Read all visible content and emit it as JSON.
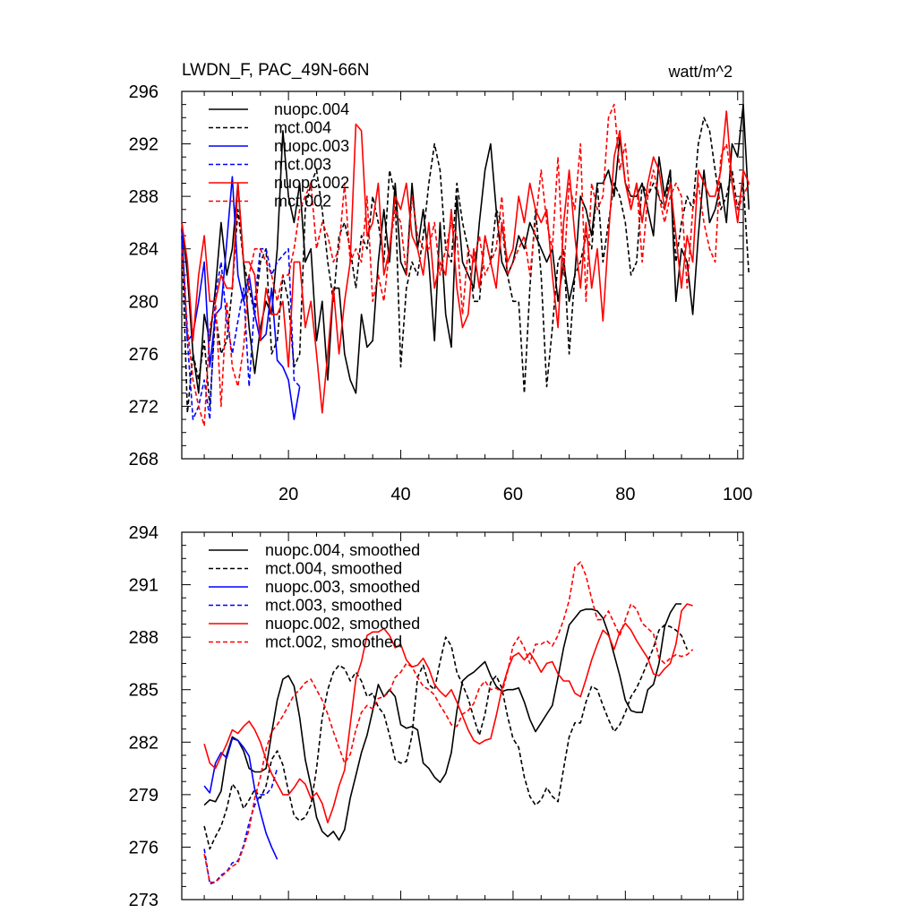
{
  "chart_data": [
    {
      "type": "line",
      "title": "LWDN_F, PAC_49N-66N",
      "units": "watt/m^2",
      "xlim": [
        1,
        101
      ],
      "ylim": [
        268,
        296
      ],
      "xticks": [
        20,
        40,
        60,
        80,
        100
      ],
      "xtick_labels": [
        "20",
        "40",
        "60",
        "80",
        "100"
      ],
      "yticks": [
        268,
        272,
        276,
        280,
        284,
        288,
        292,
        296
      ],
      "ytick_labels": [
        "268",
        "272",
        "276",
        "280",
        "284",
        "288",
        "292",
        "296"
      ],
      "legend_position": "top-left",
      "series": [
        {
          "name": "nuopc.004",
          "color": "#000000",
          "dash": "solid",
          "x_start": 1,
          "values": [
            286.0,
            282.0,
            276.0,
            273.0,
            279.0,
            277.0,
            281.0,
            286.0,
            282.0,
            284.0,
            289.0,
            283.0,
            278.0,
            274.5,
            278.0,
            280.0,
            279.0,
            284.0,
            293.0,
            288.0,
            286.0,
            289.0,
            283.0,
            284.0,
            277.0,
            280.0,
            274.0,
            281.0,
            281.0,
            276.0,
            274.0,
            273.0,
            279.0,
            276.5,
            277.0,
            283.0,
            287.0,
            283.0,
            289.0,
            283.0,
            282.0,
            289.0,
            284.0,
            287.0,
            283.0,
            277.0,
            286.0,
            279.0,
            276.5,
            288.0,
            283.0,
            282.0,
            281.0,
            286.0,
            290.0,
            292.0,
            287.0,
            283.0,
            282.0,
            283.0,
            285.0,
            284.0,
            286.0,
            285.0,
            284.0,
            283.0,
            284.0,
            280.0,
            283.0,
            280.0,
            282.0,
            288.0,
            287.0,
            285.0,
            289.0,
            289.0,
            290.0,
            288.0,
            292.5,
            289.0,
            288.0,
            288.0,
            289.0,
            287.0,
            285.0,
            291.0,
            288.0,
            290.0,
            280.0,
            284.0,
            283.0,
            279.0,
            285.0,
            290.0,
            286.0,
            287.0,
            289.0,
            286.0,
            292.0,
            291.0,
            295.0,
            287.0
          ]
        },
        {
          "name": "mct.004",
          "color": "#000000",
          "dash": "dashed",
          "x_start": 1,
          "values": [
            285.0,
            271.5,
            276.0,
            274.0,
            277.0,
            272.0,
            279.0,
            276.0,
            277.0,
            281.0,
            287.0,
            283.0,
            281.0,
            279.0,
            283.0,
            284.0,
            276.0,
            277.0,
            282.0,
            280.0,
            275.0,
            276.0,
            287.0,
            289.0,
            290.0,
            287.0,
            283.0,
            280.0,
            285.0,
            286.0,
            284.0,
            281.0,
            285.0,
            284.0,
            288.0,
            286.0,
            283.0,
            290.0,
            288.0,
            275.0,
            281.0,
            283.0,
            282.0,
            285.0,
            289.0,
            292.0,
            290.0,
            284.0,
            283.0,
            289.0,
            286.0,
            284.0,
            280.0,
            280.0,
            285.0,
            283.0,
            287.0,
            286.0,
            282.0,
            280.0,
            280.0,
            273.0,
            281.0,
            287.0,
            282.0,
            273.5,
            278.0,
            283.0,
            284.0,
            276.0,
            282.0,
            283.0,
            285.0,
            284.0,
            289.0,
            283.0,
            286.0,
            289.0,
            288.0,
            286.0,
            282.0,
            283.0,
            289.0,
            288.0,
            289.0,
            288.0,
            287.0,
            290.0,
            283.0,
            286.0,
            288.0,
            287.0,
            292.0,
            294.0,
            293.0,
            290.0,
            287.0,
            288.0,
            290.0,
            287.0,
            289.0,
            282.0
          ]
        },
        {
          "name": "nuopc.003",
          "color": "#0000ff",
          "dash": "solid",
          "x_start": 1,
          "values": [
            285.5,
            277.0,
            277.5,
            280.0,
            283.0,
            275.0,
            279.0,
            279.5,
            284.5,
            289.5,
            282.0,
            280.0,
            282.0,
            279.0,
            277.0,
            277.5,
            281.0,
            275.5,
            275.0,
            274.0,
            271.0,
            273.5
          ]
        },
        {
          "name": "mct.003",
          "color": "#0000ff",
          "dash": "dashed",
          "x_start": 1,
          "values": [
            285.5,
            277.0,
            271.0,
            272.0,
            274.0,
            271.0,
            280.5,
            283.0,
            278.5,
            276.0,
            278.5,
            281.0,
            273.5,
            280.0,
            284.0,
            284.0,
            282.0,
            283.0,
            283.5,
            284.0,
            274.0,
            273.5
          ]
        },
        {
          "name": "nuopc.002",
          "color": "#ff0000",
          "dash": "solid",
          "x_start": 1,
          "values": [
            286.0,
            283.0,
            277.0,
            282.0,
            285.0,
            280.0,
            280.0,
            282.0,
            281.0,
            281.0,
            289.0,
            283.0,
            283.0,
            282.0,
            277.0,
            281.0,
            279.0,
            279.0,
            280.0,
            275.0,
            283.0,
            283.0,
            278.0,
            280.0,
            276.0,
            271.5,
            276.0,
            281.0,
            276.0,
            280.0,
            283.0,
            293.5,
            293.0,
            285.0,
            286.0,
            289.0,
            282.0,
            284.0,
            288.0,
            287.0,
            289.0,
            285.0,
            284.0,
            282.0,
            286.0,
            281.0,
            283.0,
            282.0,
            287.0,
            281.0,
            278.0,
            279.0,
            284.0,
            281.0,
            285.0,
            283.0,
            281.0,
            286.0,
            283.0,
            284.0,
            288.0,
            286.0,
            289.0,
            287.0,
            286.0,
            287.0,
            282.0,
            278.0,
            286.0,
            290.0,
            285.0,
            281.0,
            286.0,
            281.0,
            284.0,
            278.5,
            285.0,
            291.0,
            293.0,
            289.0,
            287.0,
            289.0,
            286.0,
            289.0,
            291.0,
            290.0,
            287.0,
            289.0,
            285.0,
            281.0,
            285.0,
            283.0,
            290.0,
            289.0,
            288.0,
            288.0,
            290.0,
            294.5,
            289.0,
            286.0,
            290.0,
            289.0
          ]
        },
        {
          "name": "mct.002",
          "color": "#ff0000",
          "dash": "dashed",
          "x_start": 1,
          "values": [
            284.0,
            278.0,
            274.0,
            272.0,
            270.5,
            278.0,
            280.0,
            272.0,
            280.0,
            275.0,
            273.5,
            276.5,
            282.0,
            284.0,
            284.0,
            283.0,
            282.0,
            280.0,
            282.0,
            282.0,
            284.0,
            287.0,
            288.0,
            289.0,
            284.0,
            286.0,
            285.0,
            283.0,
            284.0,
            289.0,
            283.0,
            284.0,
            283.0,
            288.0,
            280.0,
            282.0,
            280.0,
            284.0,
            287.0,
            286.0,
            282.0,
            288.0,
            285.0,
            284.0,
            284.0,
            286.0,
            282.0,
            284.0,
            286.0,
            285.0,
            279.0,
            284.0,
            283.0,
            285.0,
            282.0,
            283.0,
            284.0,
            288.0,
            282.0,
            283.0,
            284.0,
            285.0,
            282.0,
            286.0,
            290.0,
            286.0,
            284.0,
            291.0,
            282.0,
            289.0,
            287.0,
            292.0,
            280.0,
            289.0,
            287.0,
            288.0,
            294.0,
            295.0,
            290.0,
            292.0,
            287.0,
            289.0,
            283.0,
            288.0,
            290.0,
            288.0,
            286.0,
            288.0,
            289.0,
            288.0,
            281.0,
            287.0,
            289.0,
            286.0,
            284.0,
            283.0,
            291.0,
            292.0,
            289.0,
            287.0,
            288.0,
            289.0
          ]
        }
      ]
    },
    {
      "type": "line",
      "ylim": [
        273,
        294
      ],
      "xlim": [
        1,
        101
      ],
      "xticks": [
        20,
        40,
        60,
        80,
        100
      ],
      "yticks": [
        273,
        276,
        279,
        282,
        285,
        288,
        291,
        294
      ],
      "ytick_labels": [
        "273",
        "276",
        "279",
        "282",
        "285",
        "288",
        "291",
        "294"
      ],
      "legend_position": "top-left",
      "series": [
        {
          "name": "nuopc.004, smoothed",
          "color": "#000000",
          "dash": "solid",
          "x_start": 5,
          "values": [
            278.4,
            278.7,
            278.6,
            279.2,
            281.3,
            282.3,
            282.1,
            281.5,
            280.5,
            280.3,
            280.3,
            280.5,
            282.5,
            284.4,
            285.6,
            285.8,
            285.2,
            283.4,
            281.0,
            279.5,
            277.7,
            276.9,
            276.6,
            276.9,
            276.4,
            277.0,
            278.8,
            280.1,
            281.4,
            282.4,
            283.8,
            285.3,
            284.6,
            285.0,
            284.6,
            283.0,
            282.8,
            282.9,
            282.7,
            280.8,
            280.5,
            280.0,
            279.7,
            280.2,
            281.4,
            283.8,
            285.5,
            285.8,
            286.0,
            286.3,
            286.6,
            285.8,
            285.2,
            284.9,
            285.0,
            285.0,
            285.1,
            284.3,
            283.3,
            282.6,
            283.1,
            283.6,
            284.1,
            285.7,
            287.4,
            288.7,
            289.1,
            289.5,
            289.6,
            289.6,
            289.5,
            289.1,
            288.2,
            287.0,
            285.8,
            284.4,
            283.8,
            283.7,
            283.7,
            285.0,
            285.3,
            286.5,
            288.6,
            289.4,
            289.9,
            289.9
          ]
        },
        {
          "name": "mct.004, smoothed",
          "color": "#000000",
          "dash": "dashed",
          "x_start": 5,
          "values": [
            277.2,
            275.9,
            276.6,
            277.2,
            278.2,
            279.6,
            279.2,
            278.2,
            278.7,
            279.3,
            278.8,
            279.5,
            281.0,
            281.5,
            280.7,
            279.2,
            277.8,
            277.5,
            277.7,
            278.4,
            280.5,
            283.4,
            285.0,
            286.0,
            286.4,
            286.2,
            285.5,
            286.0,
            285.5,
            284.6,
            284.8,
            284.0,
            283.6,
            282.4,
            281.0,
            280.8,
            280.9,
            282.4,
            285.7,
            286.4,
            285.3,
            285.0,
            286.6,
            288.0,
            287.5,
            286.0,
            285.3,
            284.5,
            283.4,
            282.4,
            283.6,
            285.4,
            285.8,
            285.1,
            283.5,
            282.2,
            281.7,
            280.0,
            278.9,
            278.4,
            278.7,
            279.4,
            278.9,
            278.6,
            280.5,
            282.3,
            283.1,
            283.1,
            284.3,
            285.2,
            285.0,
            284.1,
            283.3,
            282.6,
            283.0,
            283.7,
            284.6,
            285.1,
            285.8,
            286.6,
            287.4,
            288.4,
            288.7,
            288.6,
            288.4,
            288.1,
            287.3
          ]
        },
        {
          "name": "nuopc.003, smoothed",
          "color": "#0000ff",
          "dash": "solid",
          "x_start": 5,
          "values": [
            279.5,
            279.1,
            280.8,
            281.4,
            281.1,
            282.2,
            282.1,
            281.7,
            281.2,
            279.3,
            278.0,
            276.8,
            276.0,
            275.3
          ]
        },
        {
          "name": "mct.003, smoothed",
          "color": "#0000ff",
          "dash": "dashed",
          "x_start": 5,
          "values": [
            275.9,
            273.9,
            274.0,
            274.4,
            274.6,
            275.1,
            275.2,
            276.1,
            277.4,
            278.4,
            279.0,
            279.0,
            279.4,
            280.5
          ]
        },
        {
          "name": "nuopc.002, smoothed",
          "color": "#ff0000",
          "dash": "solid",
          "x_start": 5,
          "values": [
            281.9,
            280.8,
            280.5,
            281.2,
            281.9,
            282.7,
            282.5,
            282.9,
            283.2,
            282.7,
            282.0,
            281.0,
            280.2,
            279.6,
            279.0,
            279.0,
            279.4,
            279.9,
            279.6,
            278.8,
            279.1,
            278.5,
            277.4,
            278.3,
            279.5,
            280.4,
            283.0,
            285.6,
            286.6,
            288.1,
            288.3,
            288.3,
            288.5,
            288.1,
            287.4,
            287.6,
            286.7,
            286.3,
            286.4,
            286.8,
            286.2,
            285.3,
            284.9,
            284.6,
            285.0,
            284.3,
            283.5,
            282.7,
            282.1,
            281.9,
            282.1,
            282.2,
            283.5,
            285.0,
            286.1,
            286.9,
            287.1,
            286.7,
            287.1,
            286.6,
            286.0,
            286.5,
            286.6,
            285.9,
            285.5,
            285.5,
            284.8,
            284.6,
            285.6,
            286.7,
            287.6,
            288.4,
            288.1,
            287.3,
            288.3,
            288.8,
            288.4,
            287.8,
            287.3,
            286.8,
            285.9,
            285.8,
            286.2,
            286.5,
            287.6,
            289.5,
            289.9,
            289.8
          ]
        },
        {
          "name": "mct.002, smoothed",
          "color": "#ff0000",
          "dash": "dashed",
          "x_start": 5,
          "values": [
            275.6,
            274.0,
            274.0,
            274.3,
            274.6,
            274.9,
            275.1,
            276.0,
            277.0,
            278.8,
            280.0,
            281.6,
            282.6,
            283.0,
            283.5,
            284.1,
            284.7,
            285.0,
            285.4,
            285.6,
            285.0,
            284.4,
            283.6,
            282.6,
            281.7,
            280.8,
            281.3,
            282.7,
            283.7,
            284.1,
            283.9,
            284.5,
            284.6,
            284.9,
            285.7,
            286.0,
            286.5,
            286.3,
            285.7,
            285.2,
            285.0,
            284.7,
            284.1,
            283.6,
            283.0,
            282.9,
            283.6,
            283.8,
            284.2,
            285.1,
            285.5,
            285.0,
            285.1,
            284.8,
            286.0,
            287.5,
            288.0,
            287.4,
            286.5,
            287.6,
            287.6,
            287.8,
            287.5,
            288.1,
            289.0,
            290.1,
            292.0,
            292.3,
            291.5,
            290.2,
            289.0,
            289.0,
            289.5,
            288.8,
            288.1,
            289.0,
            289.9,
            289.6,
            288.8,
            288.5,
            288.2,
            286.8,
            286.5,
            286.8,
            287.0,
            286.9,
            287.0,
            287.3
          ]
        }
      ]
    }
  ]
}
